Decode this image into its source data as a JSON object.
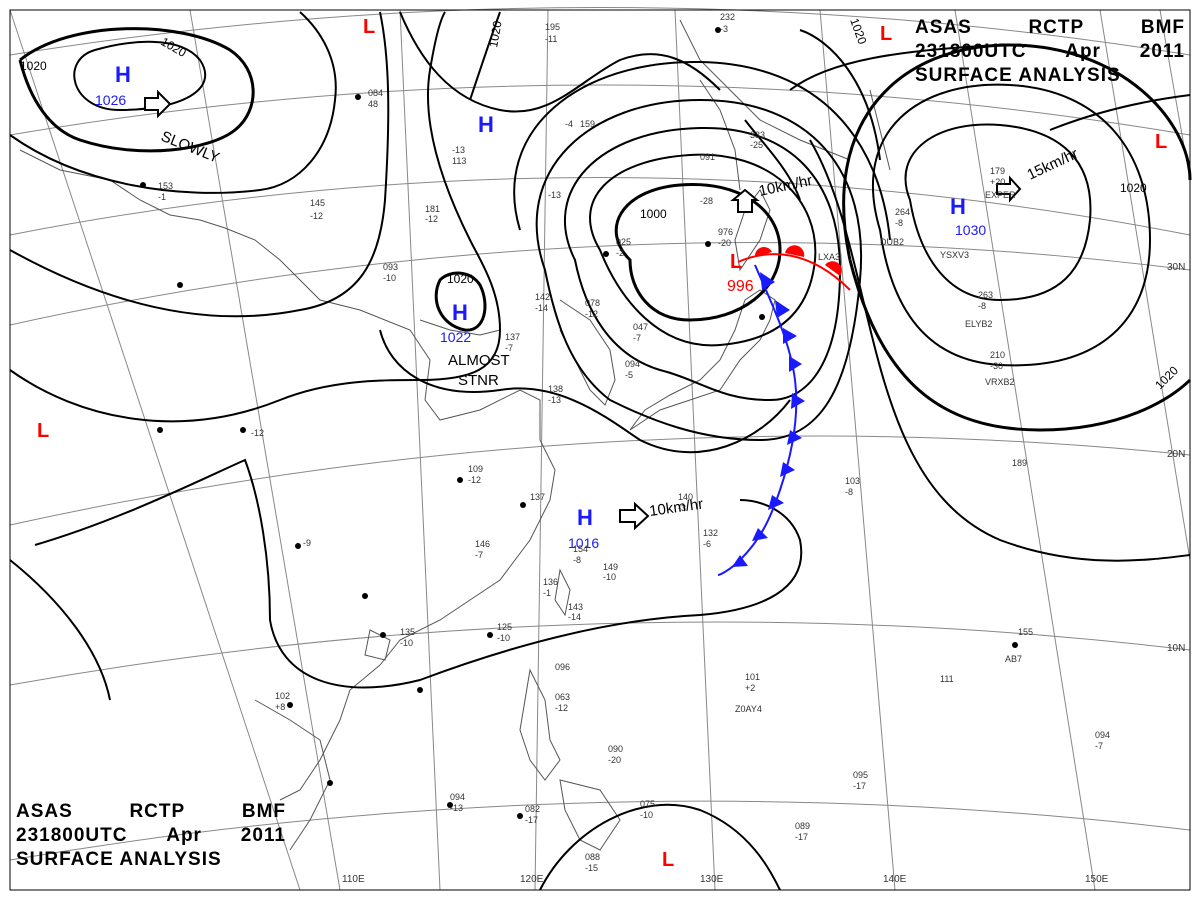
{
  "title": {
    "line1": [
      "ASAS",
      "RCTP",
      "BMF"
    ],
    "line2": [
      "231800UTC",
      "Apr",
      "2011"
    ],
    "line3": "SURFACE ANALYSIS"
  },
  "lon_labels": [
    "110E",
    "120E",
    "130E",
    "140E",
    "150E"
  ],
  "lat_labels": [
    "30N",
    "20N",
    "10N"
  ],
  "isobar_labels": [
    "1020",
    "1020",
    "1020",
    "1020",
    "1020",
    "1020",
    "1020",
    "1000"
  ],
  "high_centers": [
    {
      "letter": "H",
      "value": "1026"
    },
    {
      "letter": "H",
      "value": ""
    },
    {
      "letter": "H",
      "value": "1022"
    },
    {
      "letter": "H",
      "value": "1016"
    },
    {
      "letter": "H",
      "value": "1030"
    }
  ],
  "low_centers": [
    {
      "letter": "L",
      "value": "996"
    },
    {
      "letter": "L",
      "value": ""
    },
    {
      "letter": "L",
      "value": ""
    },
    {
      "letter": "L",
      "value": ""
    },
    {
      "letter": "L",
      "value": ""
    },
    {
      "letter": "L",
      "value": ""
    }
  ],
  "motion_labels": [
    "SLOWLY",
    "10km/hr",
    "10km/hr",
    "15km/hr"
  ],
  "stationary_label": [
    "ALMOST",
    "STNR"
  ],
  "station_values": [
    "195",
    "-11",
    "232",
    "-3",
    "084",
    "48",
    "159",
    "-4",
    "145",
    "-12",
    "181",
    "-12",
    "093",
    "-10",
    "142",
    "-14",
    "078",
    "-12",
    "137",
    "-7",
    "138",
    "-13",
    "109",
    "-12",
    "137",
    "146",
    "-7",
    "154",
    "-8",
    "149",
    "-10",
    "143",
    "-14",
    "136",
    "-1",
    "125",
    "-10",
    "135",
    "-10",
    "102",
    "+8",
    "096",
    "063",
    "-12",
    "090",
    "-20",
    "094",
    "-13",
    "082",
    "-17",
    "075",
    "-10",
    "088",
    "-15",
    "101",
    "+2",
    "095",
    "-17",
    "089",
    "-17",
    "094",
    "-7",
    "111",
    "155",
    "189",
    "103",
    "-8",
    "263",
    "-8",
    "210",
    "-30",
    "179",
    "+20",
    "264",
    "-8",
    "025",
    "-2",
    "047",
    "-7",
    "094",
    "-5",
    "140",
    "-3",
    "132",
    "-6",
    "-9",
    "153",
    "-1",
    "-12",
    "976",
    "-20",
    "091",
    "-28",
    "-25",
    "333",
    "-13",
    "113",
    "-13"
  ],
  "station_ids": [
    "ELYB2",
    "VRXB2",
    "YSXV3",
    "DUB2",
    "Z0AY4",
    "AB7",
    "LXA3",
    "EXPER"
  ],
  "colors": {
    "isobar": "#000000",
    "coast": "#555555",
    "grid": "#888888",
    "high": "#1a1aff",
    "low": "#ff0000",
    "cold_front": "#1a1aff",
    "warm_front": "#ff0000",
    "background": "#ffffff"
  }
}
